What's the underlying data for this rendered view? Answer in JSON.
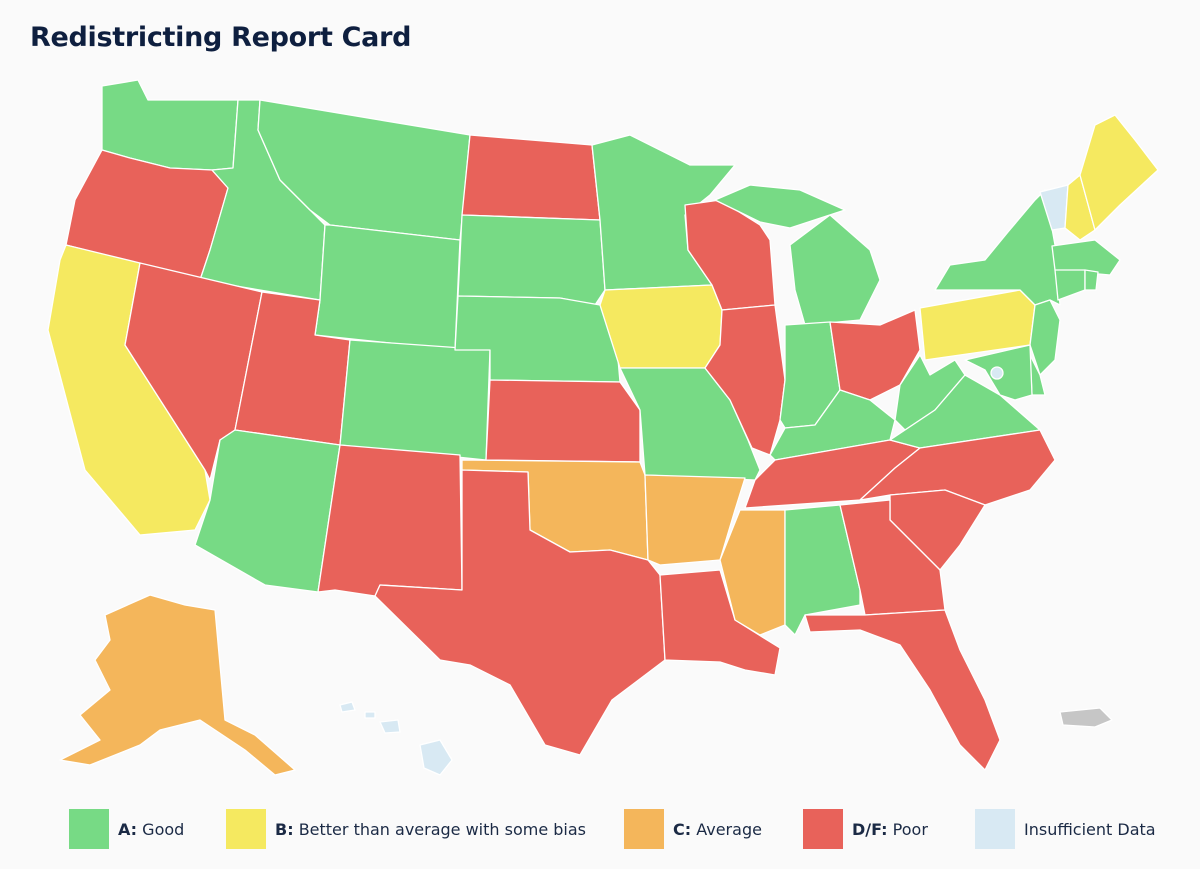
{
  "title": "Redistricting Report Card",
  "colors": {
    "A": "#77da85",
    "B": "#f5e960",
    "C": "#f4b65b",
    "DF": "#e8625a",
    "ND": "#d8e9f3",
    "territory": "#c6c6c6"
  },
  "legend": [
    {
      "grade": "A:",
      "label": "Good",
      "color": "#77da85"
    },
    {
      "grade": "B:",
      "label": "Better than average with some bias",
      "color": "#f5e960"
    },
    {
      "grade": "C:",
      "label": "Average",
      "color": "#f4b65b"
    },
    {
      "grade": "D/F:",
      "label": "Poor",
      "color": "#e8625a"
    },
    {
      "grade": "",
      "label": "Insufficient Data",
      "color": "#d8e9f3"
    }
  ],
  "grades": {
    "WA": "A",
    "OR": "DF",
    "CA": "B",
    "ID": "A",
    "NV": "DF",
    "MT": "A",
    "WY": "A",
    "UT": "DF",
    "AZ": "A",
    "CO": "A",
    "NM": "DF",
    "ND": "DF",
    "SD": "A",
    "NE": "A",
    "KS": "DF",
    "OK": "C",
    "TX": "DF",
    "MN": "A",
    "IA": "B",
    "MO": "A",
    "AR": "C",
    "LA": "DF",
    "WI": "DF",
    "IL": "DF",
    "MS": "C",
    "MI": "A",
    "IN": "A",
    "KY": "A",
    "TN": "DF",
    "AL": "A",
    "OH": "DF",
    "WV": "A",
    "VA": "A",
    "NC": "DF",
    "SC": "DF",
    "GA": "DF",
    "FL": "DF",
    "PA": "B",
    "NY": "A",
    "VT": "ND",
    "NH": "B",
    "ME": "B",
    "MA": "A",
    "CT": "A",
    "RI": "A",
    "NJ": "A",
    "DE": "A",
    "MD": "A",
    "DC": "ND",
    "AK": "C",
    "HI": "ND",
    "PR": "territory"
  }
}
